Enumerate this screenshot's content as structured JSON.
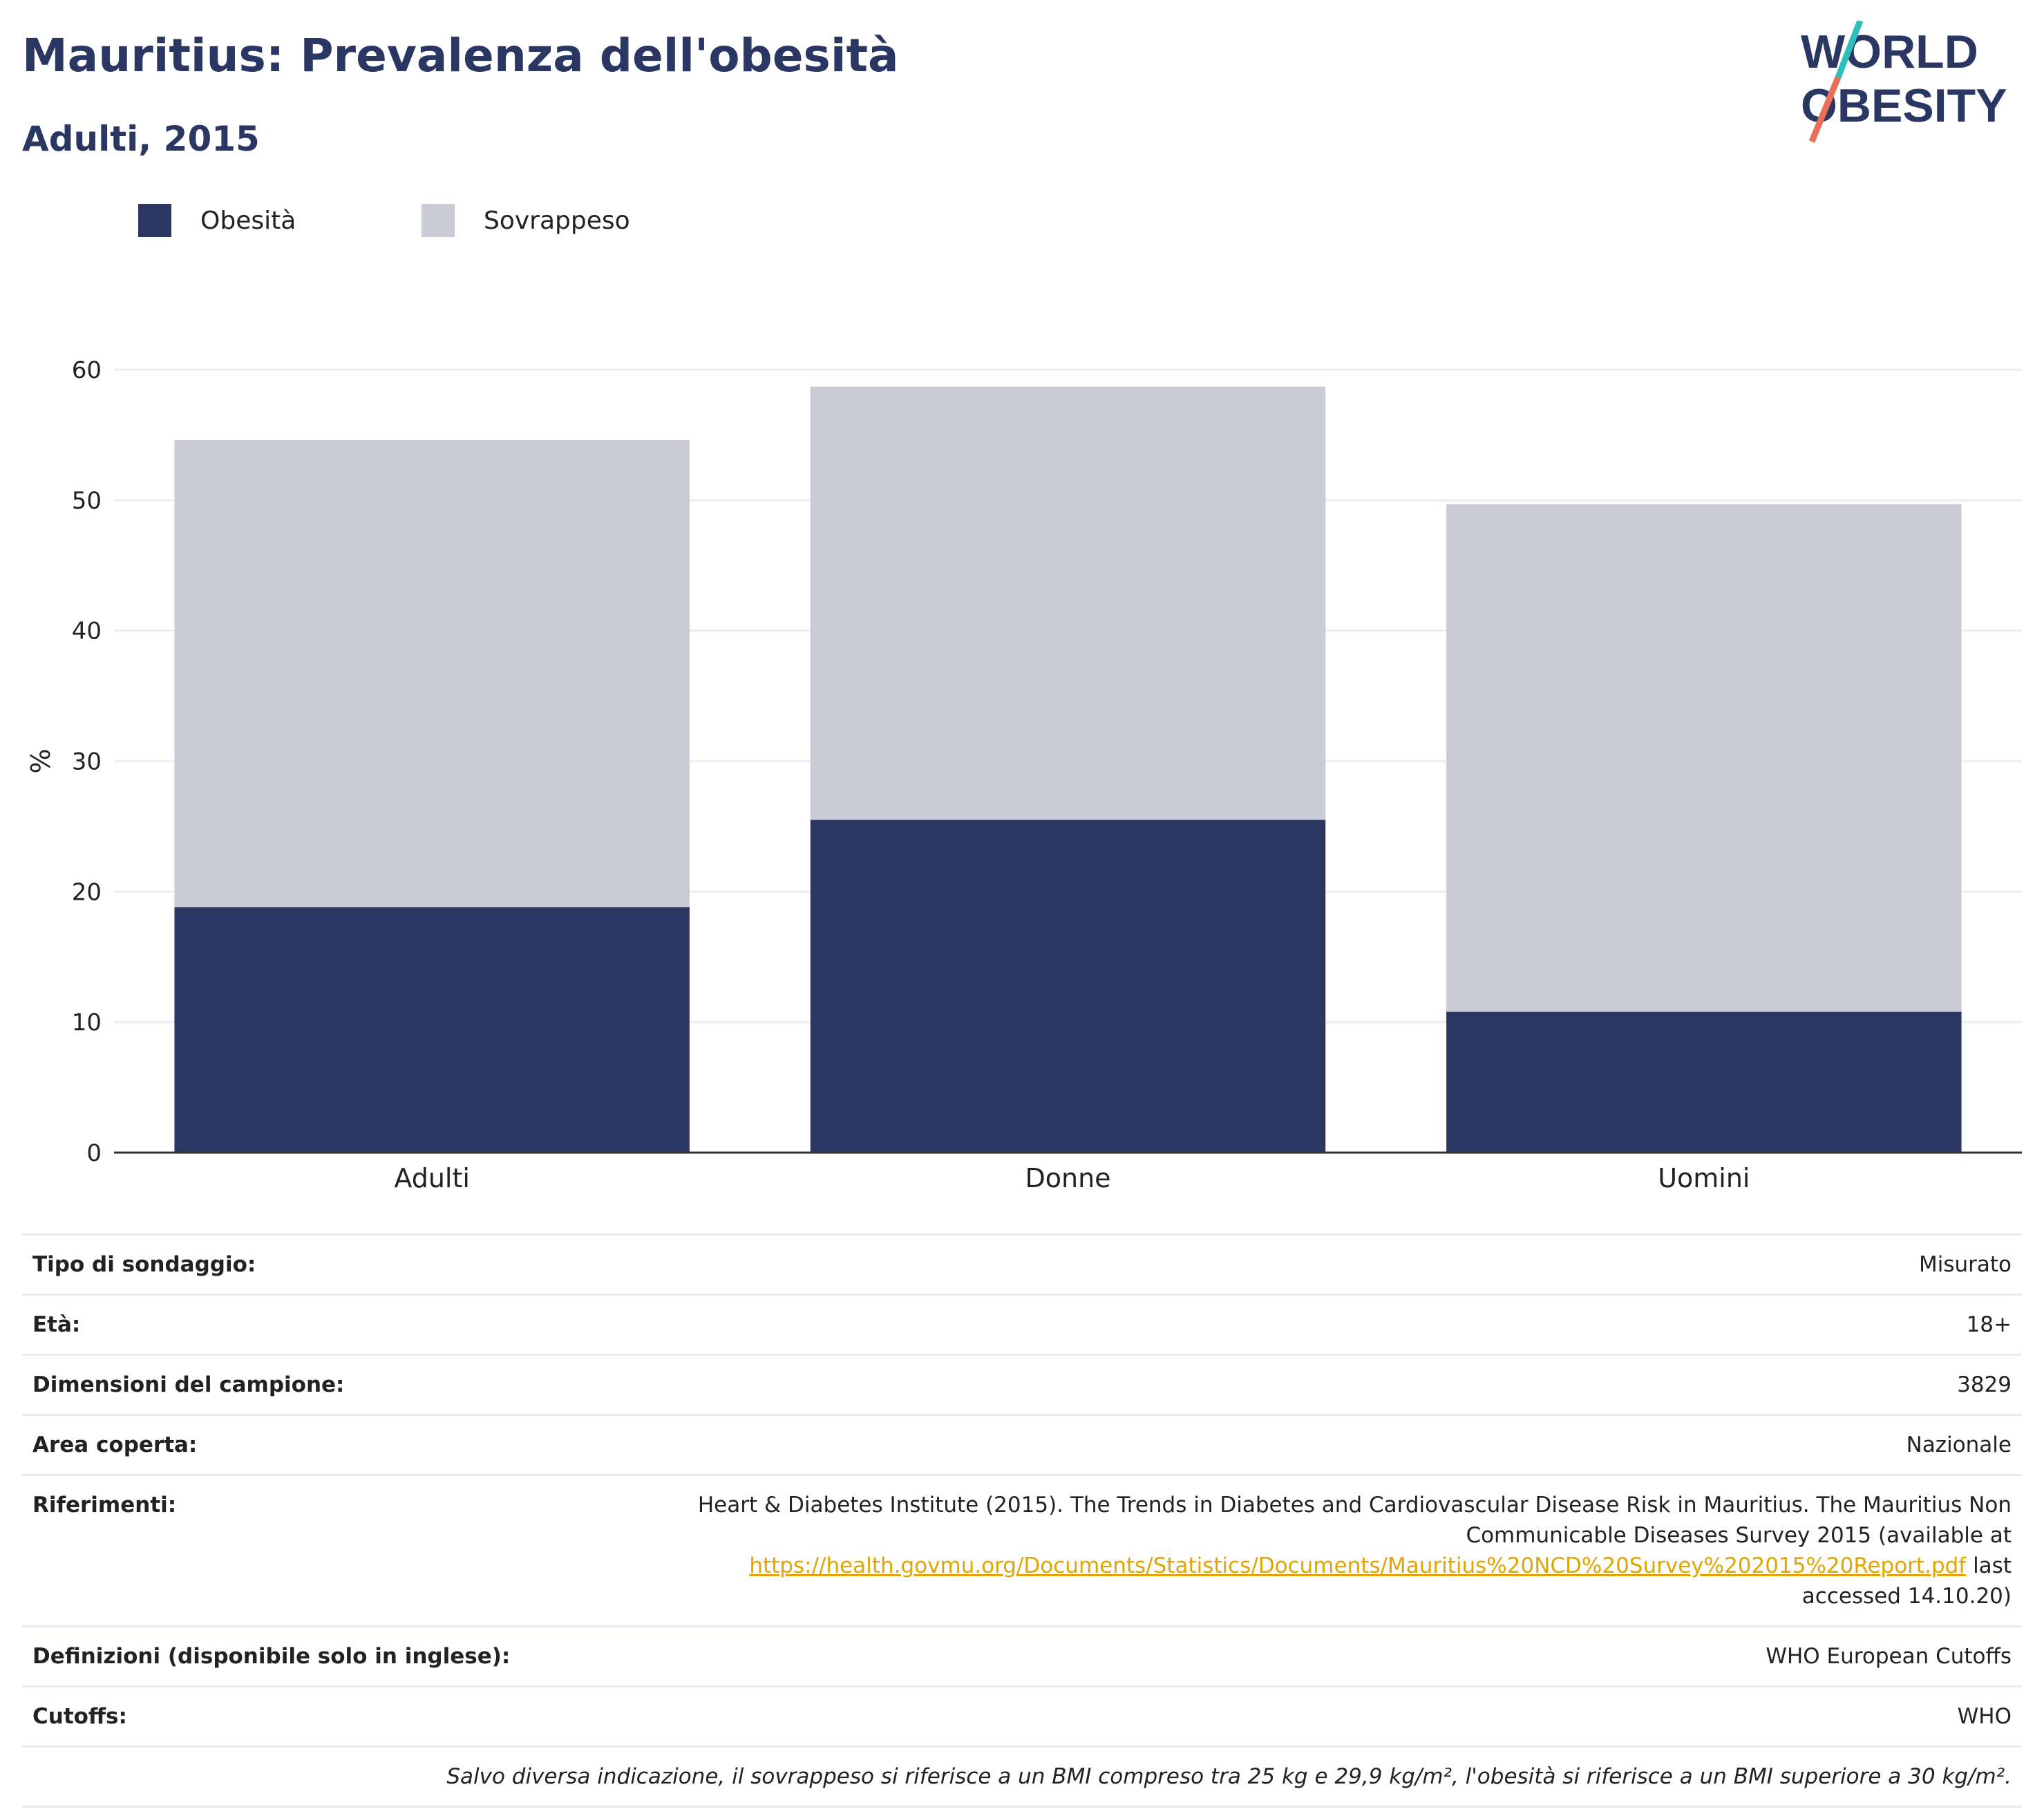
{
  "header": {
    "title": "Mauritius: Prevalenza dell'obesità",
    "subtitle": "Adulti, 2015"
  },
  "logo": {
    "line1": "WORLD",
    "line2": "OBESITY"
  },
  "colors": {
    "obesity": "#2b3763",
    "overweight": "#cacbd7",
    "title": "#2b3763",
    "link": "#e2a400"
  },
  "chart_data": {
    "type": "bar",
    "stacked": true,
    "categories": [
      "Adulti",
      "Donne",
      "Uomini"
    ],
    "series": [
      {
        "name": "Obesità",
        "values": [
          18.8,
          25.5,
          10.8
        ]
      },
      {
        "name": "Sovrappeso",
        "values": [
          35.8,
          33.2,
          38.9
        ]
      }
    ],
    "ylabel": "%",
    "ylim": [
      0,
      60
    ],
    "yticks": [
      0,
      10,
      20,
      30,
      40,
      50,
      60
    ],
    "grid": true,
    "legend_position": "top-left"
  },
  "meta": {
    "survey_type": {
      "label": "Tipo di sondaggio:",
      "value": "Misurato"
    },
    "age": {
      "label": "Età:",
      "value": "18+"
    },
    "sample_size": {
      "label": "Dimensioni del campione:",
      "value": "3829"
    },
    "area": {
      "label": "Area coperta:",
      "value": "Nazionale"
    },
    "references": {
      "label": "Riferimenti:",
      "text_before": "Heart & Diabetes Institute (2015). The Trends in Diabetes and Cardiovascular Disease Risk in Mauritius. The Mauritius Non Communicable Diseases Survey 2015 (available at ",
      "link": "https://health.govmu.org/Documents/Statistics/Documents/Mauritius%20NCD%20Survey%202015%20Report.pdf",
      "text_after": " last accessed 14.10.20)"
    },
    "definitions": {
      "label": "Definizioni (disponibile solo in inglese):",
      "value": "WHO European Cutoffs"
    },
    "cutoffs": {
      "label": "Cutoffs:",
      "value": "WHO"
    },
    "footnote": "Salvo diversa indicazione, il sovrappeso si riferisce a un BMI compreso tra 25 kg e 29,9 kg/m², l'obesità si riferisce a un BMI superiore a 30 kg/m²."
  }
}
